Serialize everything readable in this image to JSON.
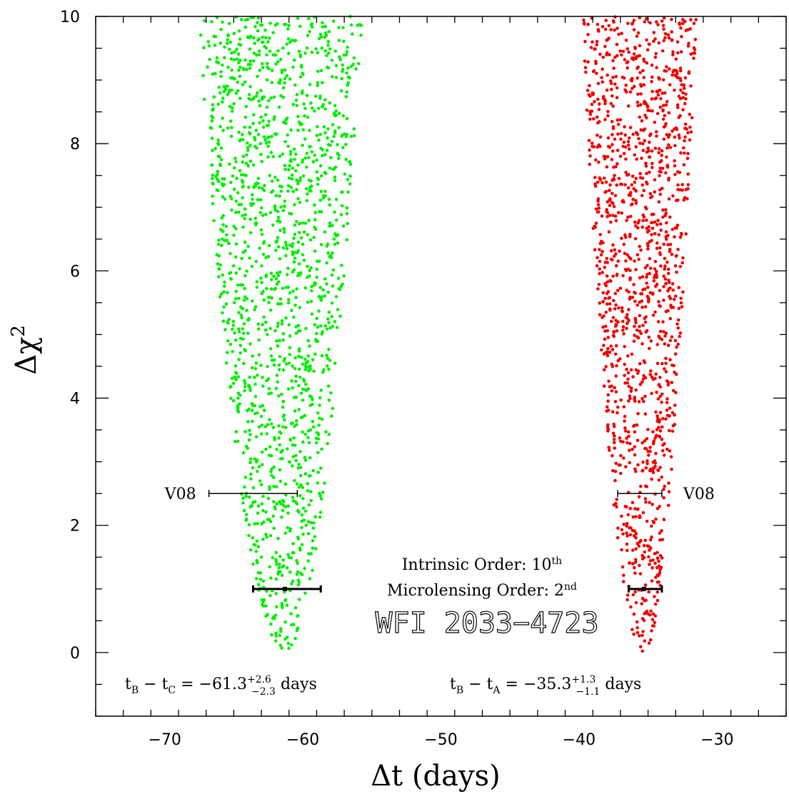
{
  "chart_data": {
    "type": "scatter",
    "xlabel": "Δt (days)",
    "ylabel": "Δχ",
    "ylabel_sup": "2",
    "xlim": [
      -75,
      -25
    ],
    "ylim": [
      -1,
      10
    ],
    "xticks": [
      -70,
      -60,
      -50,
      -40,
      -30
    ],
    "yticks": [
      0,
      2,
      4,
      6,
      8,
      10
    ],
    "xtick_labels": [
      "−70",
      "−60",
      "−50",
      "−40",
      "−30"
    ],
    "ytick_labels": [
      "0",
      "2",
      "4",
      "6",
      "8",
      "10"
    ],
    "grid": false,
    "series": [
      {
        "color": "#00ee00",
        "min_x": -61.3,
        "min_y": 0,
        "curvature": 2.6,
        "x_range_at_top": [
          -67.6,
          -55.7
        ]
      },
      {
        "color": "#ee0000",
        "min_x": -35.3,
        "min_y": 0,
        "curvature": 2.6,
        "x_range_at_top": [
          -39.8,
          -31.5
        ]
      }
    ],
    "errorbars": [
      {
        "label": "V08",
        "y": 2.5,
        "x_low": -66.8,
        "x_high": -60.4,
        "label_side": "left"
      },
      {
        "label": "V08",
        "y": 2.5,
        "x_low": -37.2,
        "x_high": -34.0,
        "label_side": "right"
      },
      {
        "label": "",
        "y": 1.0,
        "center": -61.3,
        "x_low": -63.6,
        "x_high": -58.7
      },
      {
        "label": "",
        "y": 1.0,
        "center": -35.3,
        "x_low": -36.4,
        "x_high": -34.0
      }
    ],
    "annotations": {
      "intrinsic_order": "Intrinsic Order: 10",
      "intrinsic_order_sup": "th",
      "microlensing_order": "Microlensing Order: 2",
      "microlensing_order_sup": "nd",
      "object_name": "WFI 2033−4723",
      "delay_bc": {
        "t1": "t",
        "t1_sub": "B",
        "minus": " − ",
        "t2": "t",
        "t2_sub": "C",
        "eq": " = −61.3",
        "plus_err": "+2.6",
        "minus_err": "−2.3",
        "unit": " days"
      },
      "delay_ba": {
        "t1": "t",
        "t1_sub": "B",
        "minus": " − ",
        "t2": "t",
        "t2_sub": "A",
        "eq": " = −35.3",
        "plus_err": "+1.3",
        "minus_err": "−1.1",
        "unit": " days"
      }
    }
  }
}
